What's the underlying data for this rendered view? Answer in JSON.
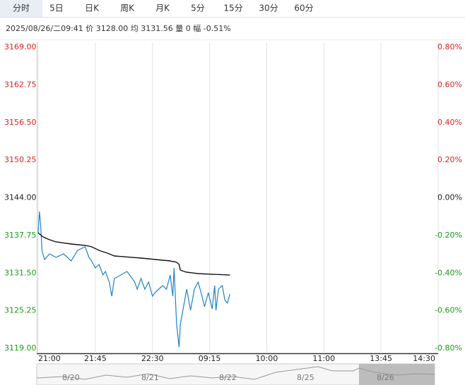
{
  "tabs": [
    "分时",
    "5日",
    "日K",
    "周K",
    "月K",
    "5分",
    "15分",
    "30分",
    "60分"
  ],
  "selected_tab": 0,
  "info": "2025/08/26/二09:41 价 3128.00 均 3131.56 量 0 幅 -0.51%",
  "chart_data": {
    "type": "line",
    "x": [
      0,
      1,
      2,
      3,
      5,
      9,
      14,
      20,
      26,
      31,
      37,
      40,
      42,
      45,
      48,
      51,
      53,
      56,
      58,
      60,
      65,
      70,
      76,
      78,
      81,
      84,
      87,
      90,
      92,
      98,
      101,
      104,
      106,
      107,
      109,
      111,
      112,
      115,
      117,
      120,
      123,
      126,
      129,
      131,
      134,
      137,
      139,
      140,
      142,
      145,
      147,
      149,
      151
    ],
    "series": [
      {
        "color": "#1f84c6",
        "values": [
          3138.2,
          3141.72,
          3139.37,
          3135.27,
          3133.75,
          3134.69,
          3134.1,
          3134.69,
          3133.52,
          3135.27,
          3135.86,
          3134.1,
          3133.52,
          3132.35,
          3132.93,
          3131.18,
          3131.76,
          3130.01,
          3127.66,
          3130.59,
          3131.18,
          3131.76,
          3130.01,
          3128.83,
          3130.59,
          3128.83,
          3130.01,
          3127.66,
          3128.25,
          3129.42,
          3128.83,
          3131.18,
          3127.66,
          3132.35,
          3122.98,
          3119.2,
          3122.98,
          3126.49,
          3128.83,
          3125.32,
          3128.83,
          3130.01,
          3127.66,
          3125.91,
          3128.25,
          3125.56,
          3129.42,
          3125.32,
          3128.83,
          3129.42,
          3127.08,
          3126.49,
          3128.0
        ]
      },
      {
        "color": "#111111",
        "values": [
          3138.2,
          3137.97,
          3137.85,
          3137.62,
          3137.38,
          3137.03,
          3136.68,
          3136.5,
          3136.33,
          3136.21,
          3136.09,
          3135.98,
          3135.86,
          3135.57,
          3135.27,
          3135.04,
          3134.92,
          3134.69,
          3134.51,
          3134.34,
          3134.26,
          3134.17,
          3134.07,
          3134.03,
          3133.99,
          3133.93,
          3133.87,
          3133.8,
          3133.75,
          3133.64,
          3133.58,
          3133.52,
          3133.4,
          3133.4,
          3133.28,
          3132.93,
          3132.0,
          3131.76,
          3131.65,
          3131.56,
          3131.49,
          3131.41,
          3131.38,
          3131.35,
          3131.33,
          3131.29,
          3131.28,
          3131.27,
          3131.26,
          3131.22,
          3131.21,
          3131.19,
          3131.18
        ]
      }
    ],
    "xlim": [
      0,
      315
    ],
    "xticks": [
      {
        "value": 0,
        "label": "21:00"
      },
      {
        "value": 45,
        "label": "21:45"
      },
      {
        "value": 90,
        "label": "22:30"
      },
      {
        "value": 135,
        "label": "09:15"
      },
      {
        "value": 180,
        "label": "10:00"
      },
      {
        "value": 225,
        "label": "11:00"
      },
      {
        "value": 270,
        "label": "13:45"
      },
      {
        "value": 315,
        "label": "14:30"
      }
    ],
    "ylim": [
      3119,
      3169
    ],
    "yticks": [
      {
        "value": 3169,
        "label": "3169.00"
      },
      {
        "value": 3162.75,
        "label": "3162.75"
      },
      {
        "value": 3156.5,
        "label": "3156.50"
      },
      {
        "value": 3150.25,
        "label": "3150.25"
      },
      {
        "value": 3144,
        "label": "3144.00"
      },
      {
        "value": 3137.75,
        "label": "3137.75"
      },
      {
        "value": 3131.5,
        "label": "3131.50"
      },
      {
        "value": 3125.25,
        "label": "3125.25"
      },
      {
        "value": 3119,
        "label": "3119.00"
      }
    ],
    "y2lim": [
      -0.8,
      0.8
    ],
    "y2ticks": [
      {
        "value": 0.8,
        "label": "0.80%"
      },
      {
        "value": 0.6,
        "label": "0.60%"
      },
      {
        "value": 0.4,
        "label": "0.40%"
      },
      {
        "value": 0.2,
        "label": "0.20%"
      },
      {
        "value": 0,
        "label": "0.00%"
      },
      {
        "value": -0.2,
        "label": "-0.20%"
      },
      {
        "value": -0.4,
        "label": "-0.40%"
      },
      {
        "value": -0.6,
        "label": "-0.60%"
      },
      {
        "value": -0.8,
        "label": "-0.80%"
      }
    ],
    "up_color": "#e02020",
    "down_color": "#1a9a1a",
    "flat_color": "#222222",
    "grid": "x"
  },
  "navigator": {
    "labels": [
      "8/20",
      "8/21",
      "8/22",
      "8/25",
      "8/26"
    ]
  }
}
